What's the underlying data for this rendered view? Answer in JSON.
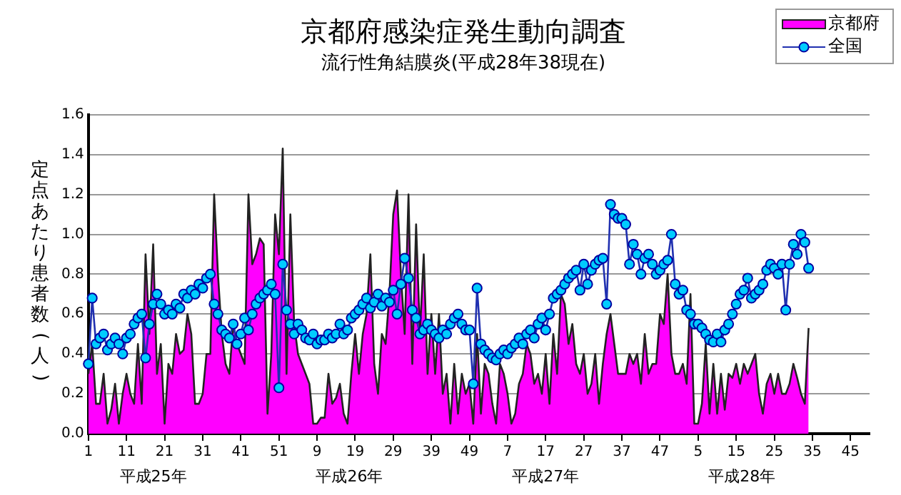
{
  "chart_data": {
    "type": "area",
    "title": "京都府感染症発生動向調査",
    "subtitle": "流行性角結膜炎(平成28年38現在)",
    "ylabel": "定点あたり患者数(人)",
    "categories": [
      "1",
      null,
      null,
      null,
      null,
      null,
      null,
      null,
      null,
      null,
      "11",
      null,
      null,
      null,
      null,
      null,
      null,
      null,
      null,
      null,
      "21",
      null,
      null,
      null,
      null,
      null,
      null,
      null,
      null,
      null,
      "31",
      null,
      null,
      null,
      null,
      null,
      null,
      null,
      null,
      null,
      "41",
      null,
      null,
      null,
      null,
      null,
      null,
      null,
      null,
      null,
      "51",
      null,
      null,
      null,
      null,
      null,
      null,
      null,
      null,
      null,
      "9",
      null,
      null,
      null,
      null,
      null,
      null,
      null,
      null,
      null,
      "19",
      null,
      null,
      null,
      null,
      null,
      null,
      null,
      null,
      null,
      "29",
      null,
      null,
      null,
      null,
      null,
      null,
      null,
      null,
      null,
      "39",
      null,
      null,
      null,
      null,
      null,
      null,
      null,
      null,
      null,
      "49",
      null,
      null,
      null,
      null,
      null,
      null,
      null,
      null,
      null,
      "7",
      null,
      null,
      null,
      null,
      null,
      null,
      null,
      null,
      null,
      "17",
      null,
      null,
      null,
      null,
      null,
      null,
      null,
      null,
      null,
      "27",
      null,
      null,
      null,
      null,
      null,
      null,
      null,
      null,
      null,
      "37",
      null,
      null,
      null,
      null,
      null,
      null,
      null,
      null,
      null,
      "47",
      null,
      null,
      null,
      null,
      null,
      null,
      null,
      null,
      null,
      "5",
      null,
      null,
      null,
      null,
      null,
      null,
      null,
      null,
      null,
      "15",
      null,
      null,
      null,
      null,
      null,
      null,
      null,
      null,
      null,
      "25",
      null,
      null,
      null,
      null,
      null,
      null,
      null,
      null,
      null,
      "35",
      null,
      null,
      null,
      null,
      null,
      null,
      null,
      null,
      null,
      "45",
      null,
      null,
      null,
      null,
      null
    ],
    "series": [
      {
        "name": "京都府",
        "color": "#ff00ff",
        "values": [
          0.3,
          0.45,
          0.15,
          0.15,
          0.3,
          0.05,
          0.12,
          0.25,
          0.05,
          0.2,
          0.3,
          0.2,
          0.15,
          0.45,
          0.15,
          0.9,
          0.5,
          0.95,
          0.3,
          0.45,
          0.05,
          0.35,
          0.3,
          0.5,
          0.4,
          0.42,
          0.6,
          0.5,
          0.15,
          0.15,
          0.2,
          0.4,
          0.4,
          1.2,
          0.8,
          0.5,
          0.35,
          0.3,
          0.55,
          0.45,
          0.4,
          0.35,
          1.2,
          0.85,
          0.9,
          0.98,
          0.95,
          0.1,
          0.4,
          1.1,
          0.9,
          1.43,
          0.3,
          1.1,
          0.55,
          0.4,
          0.35,
          0.3,
          0.25,
          0.05,
          0.05,
          0.08,
          0.08,
          0.3,
          0.15,
          0.18,
          0.25,
          0.1,
          0.05,
          0.3,
          0.5,
          0.3,
          0.5,
          0.6,
          0.9,
          0.35,
          0.2,
          0.5,
          0.45,
          0.7,
          1.1,
          1.22,
          0.8,
          0.5,
          1.2,
          0.35,
          1.05,
          0.5,
          0.9,
          0.3,
          0.6,
          0.3,
          0.6,
          0.2,
          0.3,
          0.05,
          0.35,
          0.1,
          0.3,
          0.2,
          0.25,
          0.05,
          0.5,
          0.1,
          0.35,
          0.3,
          0.15,
          0.05,
          0.35,
          0.3,
          0.2,
          0.05,
          0.1,
          0.25,
          0.3,
          0.45,
          0.4,
          0.25,
          0.3,
          0.2,
          0.4,
          0.15,
          0.5,
          0.3,
          0.7,
          0.65,
          0.45,
          0.55,
          0.35,
          0.3,
          0.4,
          0.2,
          0.25,
          0.4,
          0.15,
          0.35,
          0.5,
          0.6,
          0.45,
          0.3,
          0.3,
          0.3,
          0.4,
          0.35,
          0.4,
          0.25,
          0.5,
          0.3,
          0.35,
          0.35,
          0.6,
          0.55,
          0.8,
          0.4,
          0.3,
          0.3,
          0.35,
          0.25,
          0.7,
          0.05,
          0.05,
          0.15,
          0.45,
          0.1,
          0.35,
          0.1,
          0.3,
          0.12,
          0.3,
          0.28,
          0.35,
          0.25,
          0.35,
          0.3,
          0.35,
          0.4,
          0.2,
          0.1,
          0.25,
          0.3,
          0.2,
          0.3,
          0.2,
          0.2,
          0.25,
          0.35,
          0.28,
          0.2,
          0.15,
          0.53,
          null,
          null,
          null,
          null,
          null,
          null,
          null,
          null,
          null,
          null,
          null,
          null,
          null,
          null,
          null,
          null
        ]
      },
      {
        "name": "全国",
        "type": "line",
        "color": "#00ccff",
        "marker": "circle",
        "values": [
          0.35,
          0.68,
          0.45,
          0.48,
          0.5,
          0.42,
          0.45,
          0.48,
          0.45,
          0.4,
          0.48,
          0.5,
          0.55,
          0.58,
          0.6,
          0.38,
          0.55,
          0.65,
          0.7,
          0.65,
          0.6,
          0.62,
          0.6,
          0.65,
          0.63,
          0.7,
          0.68,
          0.72,
          0.7,
          0.75,
          0.73,
          0.78,
          0.8,
          0.65,
          0.6,
          0.52,
          0.5,
          0.48,
          0.55,
          0.45,
          0.5,
          0.58,
          0.52,
          0.6,
          0.65,
          0.68,
          0.7,
          0.72,
          0.75,
          0.7,
          0.23,
          0.85,
          0.62,
          0.55,
          0.5,
          0.55,
          0.52,
          0.48,
          0.47,
          0.5,
          0.45,
          0.47,
          0.47,
          0.5,
          0.48,
          0.5,
          0.55,
          0.5,
          0.52,
          0.58,
          0.6,
          0.62,
          0.65,
          0.68,
          0.63,
          0.66,
          0.7,
          0.64,
          0.68,
          0.66,
          0.72,
          0.6,
          0.75,
          0.88,
          0.78,
          0.62,
          0.58,
          0.5,
          0.52,
          0.55,
          0.52,
          0.5,
          0.48,
          0.52,
          0.5,
          0.55,
          0.58,
          0.6,
          0.55,
          0.52,
          0.52,
          0.25,
          0.73,
          0.45,
          0.42,
          0.4,
          0.38,
          0.37,
          0.4,
          0.42,
          0.4,
          0.43,
          0.45,
          0.48,
          0.45,
          0.5,
          0.52,
          0.48,
          0.55,
          0.58,
          0.52,
          0.6,
          0.68,
          0.7,
          0.72,
          0.75,
          0.78,
          0.8,
          0.82,
          0.72,
          0.85,
          0.75,
          0.82,
          0.85,
          0.87,
          0.88,
          0.65,
          1.15,
          1.1,
          1.08,
          1.08,
          1.05,
          0.85,
          0.95,
          0.9,
          0.8,
          0.88,
          0.9,
          0.85,
          0.8,
          0.82,
          0.85,
          0.87,
          1.0,
          0.75,
          0.7,
          0.72,
          0.62,
          0.6,
          0.55,
          0.55,
          0.53,
          0.5,
          0.47,
          0.46,
          0.5,
          0.46,
          0.52,
          0.55,
          0.6,
          0.65,
          0.7,
          0.72,
          0.78,
          0.68,
          0.7,
          0.72,
          0.75,
          0.82,
          0.85,
          0.83,
          0.8,
          0.85,
          0.62,
          0.85,
          0.95,
          0.9,
          1.0,
          0.96,
          0.83,
          null,
          null,
          null,
          null,
          null,
          null,
          null,
          null,
          null,
          null,
          null,
          null,
          null,
          null,
          null,
          null
        ]
      }
    ],
    "ylim": [
      0,
      1.6
    ],
    "yticks": [
      {
        "value": 0,
        "label": "0.0"
      },
      {
        "value": 0.2,
        "label": "0.2"
      },
      {
        "value": 0.4,
        "label": "0.4"
      },
      {
        "value": 0.6,
        "label": "0.6"
      },
      {
        "value": 0.8,
        "label": "0.8"
      },
      {
        "value": 1,
        "label": "1.0"
      },
      {
        "value": 1.2,
        "label": "1.2"
      },
      {
        "value": 1.4,
        "label": "1.4"
      },
      {
        "value": 1.6,
        "label": "1.6"
      }
    ],
    "grid": "y",
    "legend": "top right",
    "line_style": "solid",
    "annotations": [
      "平成25年",
      "平成26年",
      "平成27年",
      "平成28年"
    ]
  }
}
